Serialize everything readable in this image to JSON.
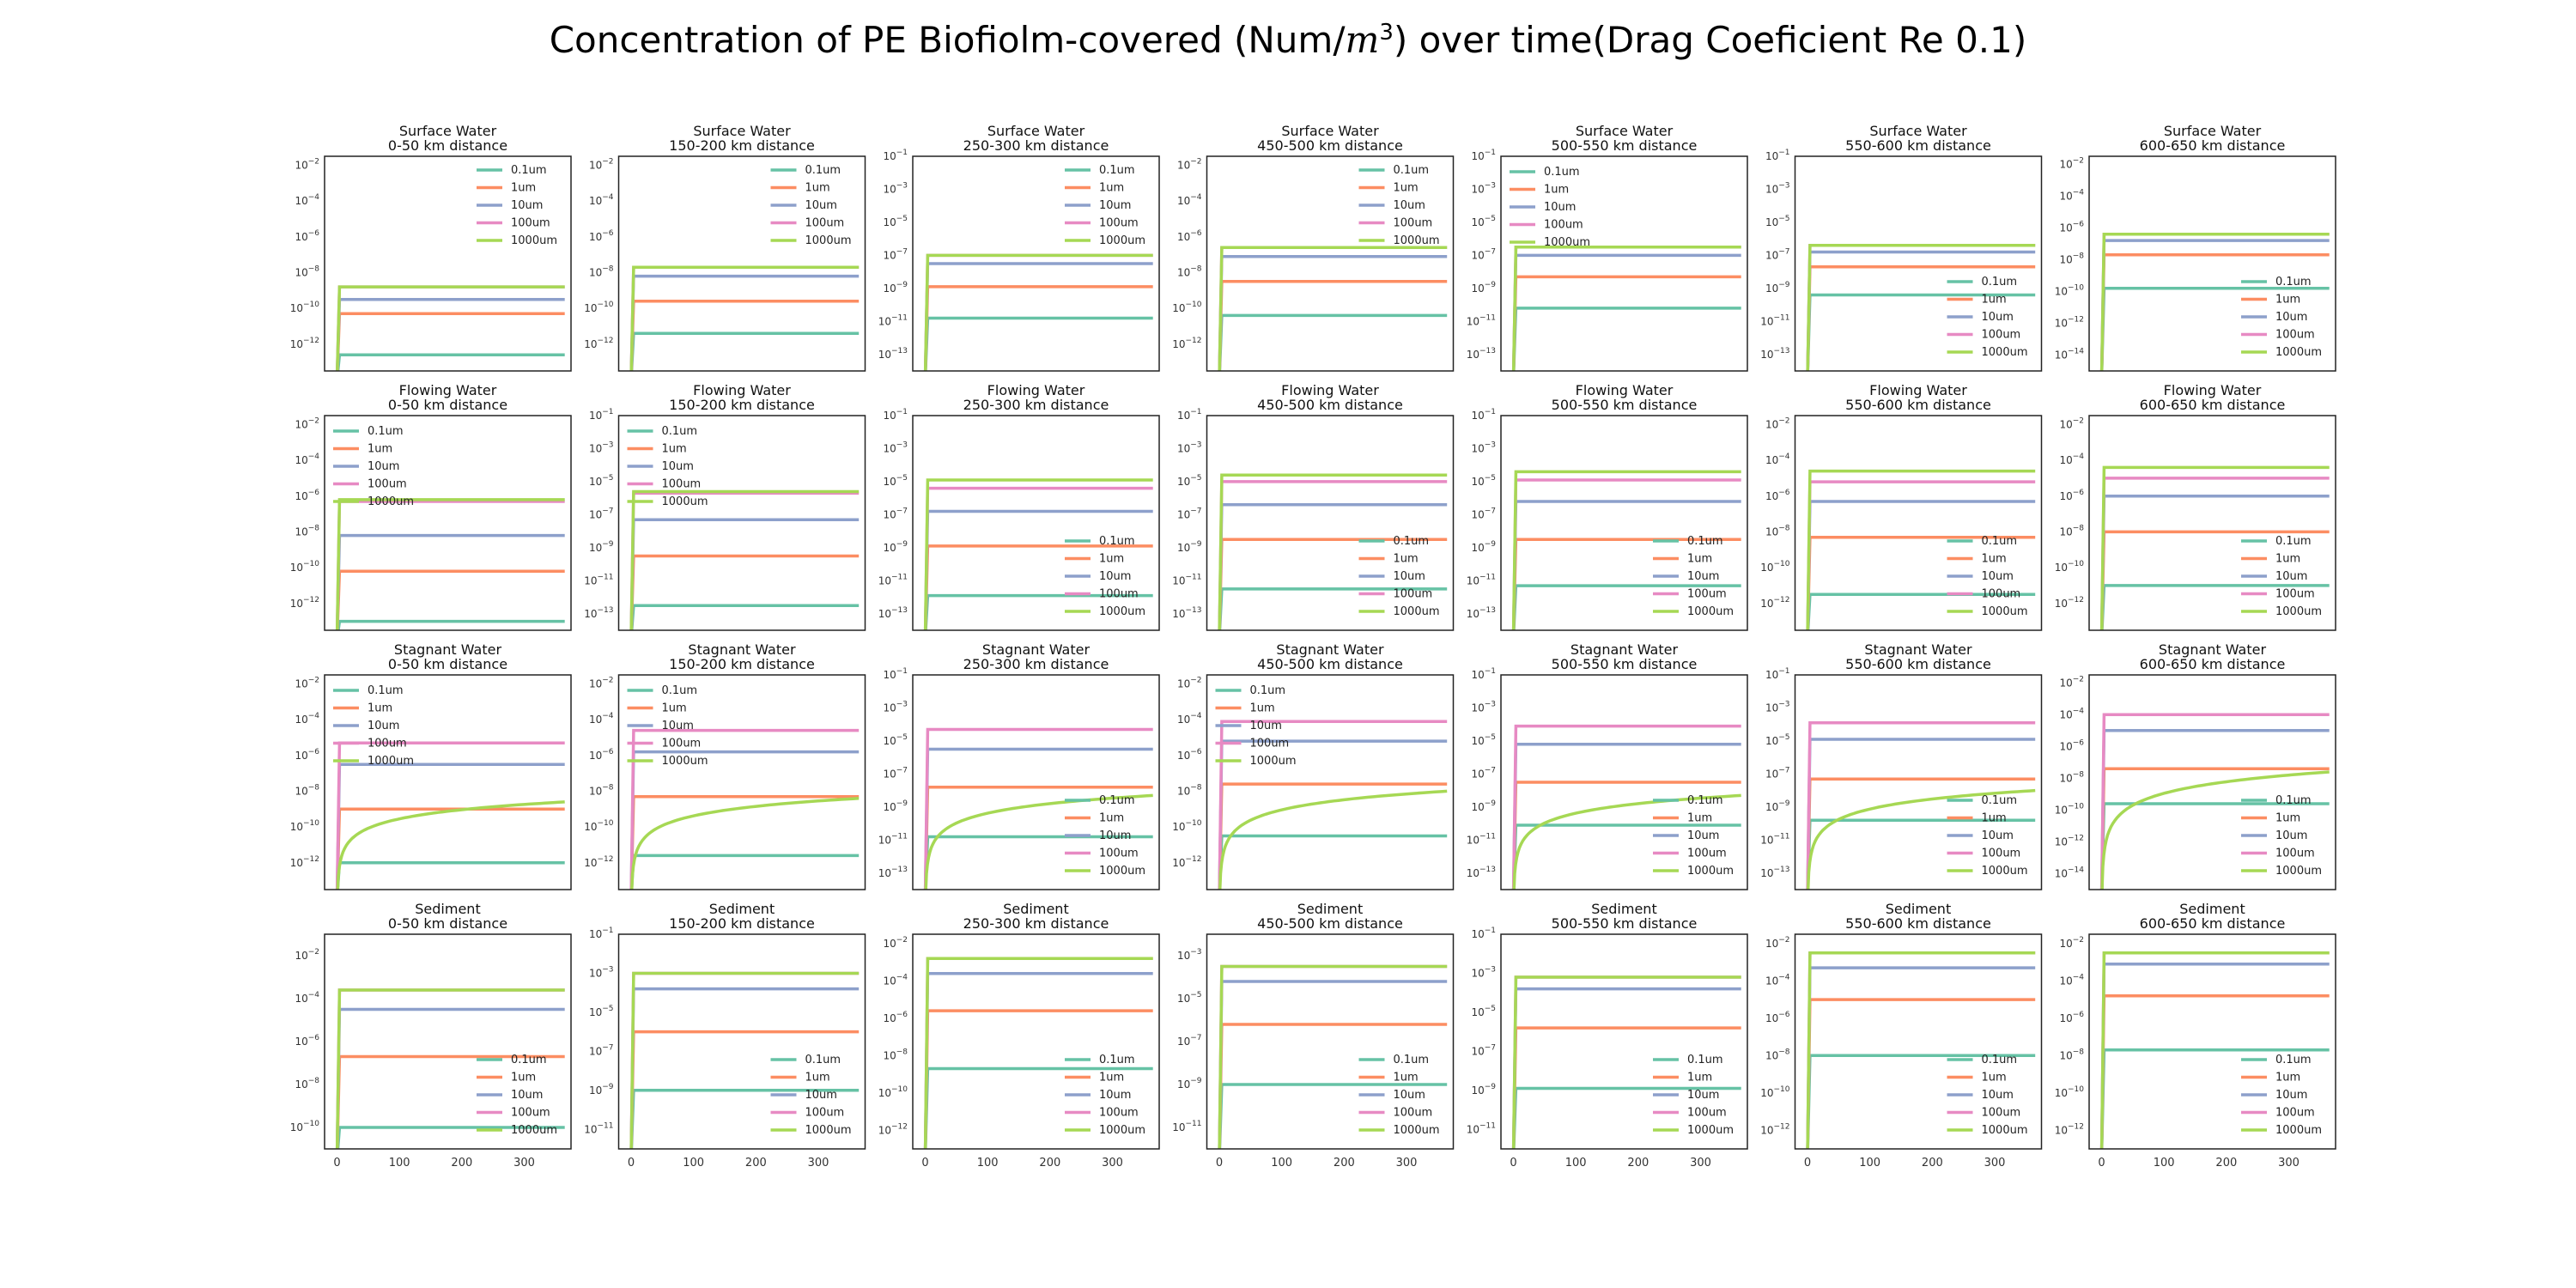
{
  "figure": {
    "title_prefix": "Concentration of PE Biofiolm-covered (Num/",
    "title_unit_base": "m",
    "title_unit_exp": "3",
    "title_suffix": ") over time(Drag Coeficient Re 0.1)"
  },
  "legend_labels": [
    "0.1um",
    "1um",
    "10um",
    "100um",
    "1000um"
  ],
  "series_colors": [
    "#66c2a5",
    "#fc8d62",
    "#8da0cb",
    "#e78ac3",
    "#a6d854"
  ],
  "x_ticks": [
    "0",
    "100",
    "200",
    "300"
  ],
  "rows": [
    "Surface Water",
    "Flowing Water",
    "Stagnant Water",
    "Sediment"
  ],
  "columns": [
    "0-50 km distance",
    "150-200 km distance",
    "250-300 km distance",
    "450-500 km distance",
    "500-550 km distance",
    "550-600 km distance",
    "600-650 km distance"
  ],
  "chart_data": [
    {
      "type": "line",
      "row": 0,
      "col": 0,
      "title": "Surface Water",
      "subtitle": "0-50 km distance",
      "y_scale": "log",
      "ylim": [
        -13.5,
        -1.5
      ],
      "yticks": [
        -12,
        -10,
        -8,
        -6,
        -4,
        -2
      ],
      "xlim": [
        -20,
        375
      ],
      "legend": "upper-right",
      "values": [
        -12.6,
        -10.3,
        -9.5,
        -8.8,
        -8.8
      ],
      "ramp": {
        "1000um": "fast"
      }
    },
    {
      "type": "line",
      "row": 0,
      "col": 1,
      "title": "Surface Water",
      "subtitle": "150-200 km distance",
      "y_scale": "log",
      "ylim": [
        -13.5,
        -1.5
      ],
      "yticks": [
        -12,
        -10,
        -8,
        -6,
        -4,
        -2
      ],
      "xlim": [
        -20,
        375
      ],
      "legend": "upper-right",
      "values": [
        -11.4,
        -9.6,
        -8.2,
        -7.7,
        -7.7
      ],
      "ramp": {
        "1000um": "fast"
      }
    },
    {
      "type": "line",
      "row": 0,
      "col": 2,
      "title": "Surface Water",
      "subtitle": "250-300 km distance",
      "y_scale": "log",
      "ylim": [
        -14,
        -1
      ],
      "yticks": [
        -13,
        -11,
        -9,
        -7,
        -5,
        -3,
        -1
      ],
      "xlim": [
        -20,
        375
      ],
      "legend": "upper-right",
      "values": [
        -10.8,
        -8.9,
        -7.5,
        -7.0,
        -7.0
      ],
      "ramp": {
        "1000um": "fast"
      }
    },
    {
      "type": "line",
      "row": 0,
      "col": 3,
      "title": "Surface Water",
      "subtitle": "450-500 km distance",
      "y_scale": "log",
      "ylim": [
        -13.5,
        -1.5
      ],
      "yticks": [
        -12,
        -10,
        -8,
        -6,
        -4,
        -2
      ],
      "xlim": [
        -20,
        375
      ],
      "legend": "upper-right",
      "values": [
        -10.4,
        -8.5,
        -7.1,
        -6.6,
        -6.6
      ],
      "ramp": {
        "1000um": "fast"
      }
    },
    {
      "type": "line",
      "row": 0,
      "col": 4,
      "title": "Surface Water",
      "subtitle": "500-550 km distance",
      "y_scale": "log",
      "ylim": [
        -14,
        -1
      ],
      "yticks": [
        -13,
        -11,
        -9,
        -7,
        -5,
        -3,
        -1
      ],
      "xlim": [
        -20,
        375
      ],
      "legend": "upper-left",
      "values": [
        -10.2,
        -8.3,
        -7.0,
        -6.5,
        -6.5
      ],
      "ramp": {
        "1000um": "fast"
      }
    },
    {
      "type": "line",
      "row": 0,
      "col": 5,
      "title": "Surface Water",
      "subtitle": "550-600 km distance",
      "y_scale": "log",
      "ylim": [
        -14,
        -1
      ],
      "yticks": [
        -13,
        -11,
        -9,
        -7,
        -5,
        -3,
        -1
      ],
      "xlim": [
        -20,
        375
      ],
      "legend": "lower-right",
      "values": [
        -9.4,
        -7.7,
        -6.8,
        -6.4,
        -6.4
      ],
      "ramp": {
        "1000um": "fast"
      }
    },
    {
      "type": "line",
      "row": 0,
      "col": 6,
      "title": "Surface Water",
      "subtitle": "600-650 km distance",
      "y_scale": "log",
      "ylim": [
        -15,
        -1.5
      ],
      "yticks": [
        -14,
        -12,
        -10,
        -8,
        -6,
        -4,
        -2
      ],
      "xlim": [
        -20,
        375
      ],
      "legend": "lower-right",
      "values": [
        -9.8,
        -7.7,
        -6.8,
        -6.4,
        -6.4
      ],
      "ramp": {
        "1000um": "fast"
      }
    },
    {
      "type": "line",
      "row": 1,
      "col": 0,
      "title": "Flowing Water",
      "subtitle": "0-50 km distance",
      "y_scale": "log",
      "ylim": [
        -13.5,
        -1.5
      ],
      "yticks": [
        -12,
        -10,
        -8,
        -6,
        -4,
        -2
      ],
      "xlim": [
        -20,
        375
      ],
      "legend": "upper-left",
      "values": [
        -13.0,
        -10.2,
        -8.2,
        -6.3,
        -6.2
      ],
      "ramp": {
        "1000um": "fast"
      }
    },
    {
      "type": "line",
      "row": 1,
      "col": 1,
      "title": "Flowing Water",
      "subtitle": "150-200 km distance",
      "y_scale": "log",
      "ylim": [
        -14,
        -1
      ],
      "yticks": [
        -13,
        -11,
        -9,
        -7,
        -5,
        -3,
        -1
      ],
      "xlim": [
        -20,
        375
      ],
      "legend": "upper-left",
      "values": [
        -12.5,
        -9.5,
        -7.3,
        -5.7,
        -5.6
      ],
      "ramp": {
        "1000um": "fast"
      }
    },
    {
      "type": "line",
      "row": 1,
      "col": 2,
      "title": "Flowing Water",
      "subtitle": "250-300 km distance",
      "y_scale": "log",
      "ylim": [
        -14,
        -1
      ],
      "yticks": [
        -13,
        -11,
        -9,
        -7,
        -5,
        -3,
        -1
      ],
      "xlim": [
        -20,
        375
      ],
      "legend": "lower-right",
      "values": [
        -11.9,
        -8.9,
        -6.8,
        -5.4,
        -4.9
      ],
      "ramp": {
        "1000um": "fast"
      }
    },
    {
      "type": "line",
      "row": 1,
      "col": 3,
      "title": "Flowing Water",
      "subtitle": "450-500 km distance",
      "y_scale": "log",
      "ylim": [
        -14,
        -1
      ],
      "yticks": [
        -13,
        -11,
        -9,
        -7,
        -5,
        -3,
        -1
      ],
      "xlim": [
        -20,
        375
      ],
      "legend": "lower-right",
      "values": [
        -11.5,
        -8.5,
        -6.4,
        -5.0,
        -4.6
      ],
      "ramp": {
        "1000um": "fast"
      }
    },
    {
      "type": "line",
      "row": 1,
      "col": 4,
      "title": "Flowing Water",
      "subtitle": "500-550 km distance",
      "y_scale": "log",
      "ylim": [
        -14,
        -1
      ],
      "yticks": [
        -13,
        -11,
        -9,
        -7,
        -5,
        -3,
        -1
      ],
      "xlim": [
        -20,
        375
      ],
      "legend": "lower-right",
      "values": [
        -11.3,
        -8.5,
        -6.2,
        -4.9,
        -4.4
      ],
      "ramp": {
        "1000um": "fast"
      }
    },
    {
      "type": "line",
      "row": 1,
      "col": 5,
      "title": "Flowing Water",
      "subtitle": "550-600 km distance",
      "y_scale": "log",
      "ylim": [
        -13.5,
        -1.5
      ],
      "yticks": [
        -12,
        -10,
        -8,
        -6,
        -4,
        -2
      ],
      "xlim": [
        -20,
        375
      ],
      "legend": "lower-right",
      "values": [
        -11.5,
        -8.3,
        -6.3,
        -5.2,
        -4.6
      ],
      "ramp": {
        "1000um": "fast"
      }
    },
    {
      "type": "line",
      "row": 1,
      "col": 6,
      "title": "Flowing Water",
      "subtitle": "600-650 km distance",
      "y_scale": "log",
      "ylim": [
        -13.5,
        -1.5
      ],
      "yticks": [
        -12,
        -10,
        -8,
        -6,
        -4,
        -2
      ],
      "xlim": [
        -20,
        375
      ],
      "legend": "lower-right",
      "values": [
        -11.0,
        -8.0,
        -6.0,
        -5.0,
        -4.4
      ],
      "ramp": {
        "1000um": "fast"
      }
    },
    {
      "type": "line",
      "row": 2,
      "col": 0,
      "title": "Stagnant Water",
      "subtitle": "0-50 km distance",
      "y_scale": "log",
      "ylim": [
        -13.5,
        -1.5
      ],
      "yticks": [
        -12,
        -10,
        -8,
        -6,
        -4,
        -2
      ],
      "xlim": [
        -20,
        375
      ],
      "legend": "upper-left",
      "values": [
        -12.0,
        -9.0,
        -6.5,
        -5.3,
        -8.6
      ],
      "ramp": {
        "1000um": "slow"
      }
    },
    {
      "type": "line",
      "row": 2,
      "col": 1,
      "title": "Stagnant Water",
      "subtitle": "150-200 km distance",
      "y_scale": "log",
      "ylim": [
        -13.5,
        -1.5
      ],
      "yticks": [
        -12,
        -10,
        -8,
        -6,
        -4,
        -2
      ],
      "xlim": [
        -20,
        375
      ],
      "legend": "upper-left",
      "values": [
        -11.6,
        -8.3,
        -5.8,
        -4.6,
        -8.4
      ],
      "ramp": {
        "1000um": "slow"
      }
    },
    {
      "type": "line",
      "row": 2,
      "col": 2,
      "title": "Stagnant Water",
      "subtitle": "250-300 km distance",
      "y_scale": "log",
      "ylim": [
        -14,
        -1
      ],
      "yticks": [
        -13,
        -11,
        -9,
        -7,
        -5,
        -3,
        -1
      ],
      "xlim": [
        -20,
        375
      ],
      "legend": "lower-right",
      "values": [
        -10.8,
        -7.8,
        -5.5,
        -4.3,
        -8.3
      ],
      "ramp": {
        "1000um": "slow"
      }
    },
    {
      "type": "line",
      "row": 2,
      "col": 3,
      "title": "Stagnant Water",
      "subtitle": "450-500 km distance",
      "y_scale": "log",
      "ylim": [
        -13.5,
        -1.5
      ],
      "yticks": [
        -12,
        -10,
        -8,
        -6,
        -4,
        -2
      ],
      "xlim": [
        -20,
        375
      ],
      "legend": "upper-left",
      "values": [
        -10.5,
        -7.6,
        -5.2,
        -4.1,
        -8.0
      ],
      "ramp": {
        "1000um": "slow"
      }
    },
    {
      "type": "line",
      "row": 2,
      "col": 4,
      "title": "Stagnant Water",
      "subtitle": "500-550 km distance",
      "y_scale": "log",
      "ylim": [
        -14,
        -1
      ],
      "yticks": [
        -13,
        -11,
        -9,
        -7,
        -5,
        -3,
        -1
      ],
      "xlim": [
        -20,
        375
      ],
      "legend": "lower-right",
      "values": [
        -10.1,
        -7.5,
        -5.2,
        -4.1,
        -8.3
      ],
      "ramp": {
        "1000um": "slow"
      }
    },
    {
      "type": "line",
      "row": 2,
      "col": 5,
      "title": "Stagnant Water",
      "subtitle": "550-600 km distance",
      "y_scale": "log",
      "ylim": [
        -14,
        -1
      ],
      "yticks": [
        -13,
        -11,
        -9,
        -7,
        -5,
        -3,
        -1
      ],
      "xlim": [
        -20,
        375
      ],
      "legend": "lower-right",
      "values": [
        -9.8,
        -7.3,
        -4.9,
        -3.9,
        -8.0
      ],
      "ramp": {
        "1000um": "slow"
      }
    },
    {
      "type": "line",
      "row": 2,
      "col": 6,
      "title": "Stagnant Water",
      "subtitle": "600-650 km distance",
      "y_scale": "log",
      "ylim": [
        -15,
        -1.5
      ],
      "yticks": [
        -14,
        -12,
        -10,
        -8,
        -6,
        -4,
        -2
      ],
      "xlim": [
        -20,
        375
      ],
      "legend": "lower-right",
      "values": [
        -9.6,
        -7.4,
        -5.0,
        -4.0,
        -7.6
      ],
      "ramp": {
        "1000um": "slow"
      }
    },
    {
      "type": "line",
      "row": 3,
      "col": 0,
      "title": "Sediment",
      "subtitle": "0-50 km distance",
      "y_scale": "log",
      "ylim": [
        -11,
        -1
      ],
      "yticks": [
        -10,
        -8,
        -6,
        -4,
        -2
      ],
      "xlim": [
        -20,
        375
      ],
      "legend": "lower-right",
      "values": [
        -10.0,
        -6.7,
        -4.5,
        -3.6,
        -3.6
      ],
      "ramp": {
        "1000um": "fast"
      }
    },
    {
      "type": "line",
      "row": 3,
      "col": 1,
      "title": "Sediment",
      "subtitle": "150-200 km distance",
      "y_scale": "log",
      "ylim": [
        -12,
        -1
      ],
      "yticks": [
        -11,
        -9,
        -7,
        -5,
        -3,
        -1
      ],
      "xlim": [
        -20,
        375
      ],
      "legend": "lower-right",
      "values": [
        -9.0,
        -6.0,
        -3.8,
        -3.0,
        -3.0
      ],
      "ramp": {
        "1000um": "fast"
      }
    },
    {
      "type": "line",
      "row": 3,
      "col": 2,
      "title": "Sediment",
      "subtitle": "250-300 km distance",
      "y_scale": "log",
      "ylim": [
        -13,
        -1.5
      ],
      "yticks": [
        -12,
        -10,
        -8,
        -6,
        -4,
        -2
      ],
      "xlim": [
        -20,
        375
      ],
      "legend": "lower-right",
      "values": [
        -8.7,
        -5.6,
        -3.6,
        -2.8,
        -2.8
      ],
      "ramp": {
        "1000um": "fast"
      }
    },
    {
      "type": "line",
      "row": 3,
      "col": 3,
      "title": "Sediment",
      "subtitle": "450-500 km distance",
      "y_scale": "log",
      "ylim": [
        -12,
        -2
      ],
      "yticks": [
        -11,
        -9,
        -7,
        -5,
        -3
      ],
      "xlim": [
        -20,
        375
      ],
      "legend": "lower-right",
      "values": [
        -9.0,
        -6.2,
        -4.2,
        -3.5,
        -3.5
      ],
      "ramp": {
        "1000um": "fast"
      }
    },
    {
      "type": "line",
      "row": 3,
      "col": 4,
      "title": "Sediment",
      "subtitle": "500-550 km distance",
      "y_scale": "log",
      "ylim": [
        -12,
        -1
      ],
      "yticks": [
        -11,
        -9,
        -7,
        -5,
        -3,
        -1
      ],
      "xlim": [
        -20,
        375
      ],
      "legend": "lower-right",
      "values": [
        -8.9,
        -5.8,
        -3.8,
        -3.2,
        -3.2
      ],
      "ramp": {
        "1000um": "fast"
      }
    },
    {
      "type": "line",
      "row": 3,
      "col": 5,
      "title": "Sediment",
      "subtitle": "550-600 km distance",
      "y_scale": "log",
      "ylim": [
        -13,
        -1.5
      ],
      "yticks": [
        -12,
        -10,
        -8,
        -6,
        -4,
        -2
      ],
      "xlim": [
        -20,
        375
      ],
      "legend": "lower-right",
      "values": [
        -8.0,
        -5.0,
        -3.3,
        -2.5,
        -2.5
      ],
      "ramp": {
        "1000um": "fast"
      }
    },
    {
      "type": "line",
      "row": 3,
      "col": 6,
      "title": "Sediment",
      "subtitle": "600-650 km distance",
      "y_scale": "log",
      "ylim": [
        -13,
        -1.5
      ],
      "yticks": [
        -12,
        -10,
        -8,
        -6,
        -4,
        -2
      ],
      "xlim": [
        -20,
        375
      ],
      "legend": "lower-right",
      "values": [
        -7.7,
        -4.8,
        -3.1,
        -2.5,
        -2.5
      ],
      "ramp": {
        "1000um": "fast"
      }
    }
  ]
}
